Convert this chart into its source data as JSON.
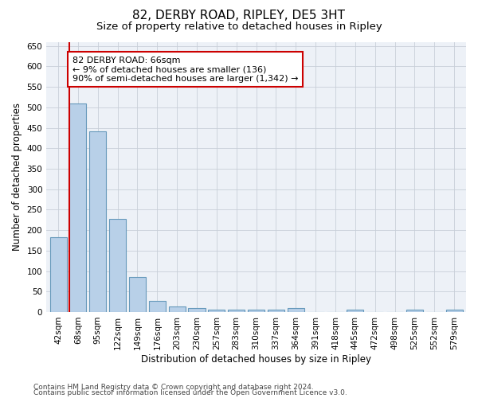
{
  "title": "82, DERBY ROAD, RIPLEY, DE5 3HT",
  "subtitle": "Size of property relative to detached houses in Ripley",
  "xlabel": "Distribution of detached houses by size in Ripley",
  "ylabel": "Number of detached properties",
  "categories": [
    "42sqm",
    "68sqm",
    "95sqm",
    "122sqm",
    "149sqm",
    "176sqm",
    "203sqm",
    "230sqm",
    "257sqm",
    "283sqm",
    "310sqm",
    "337sqm",
    "364sqm",
    "391sqm",
    "418sqm",
    "445sqm",
    "472sqm",
    "498sqm",
    "525sqm",
    "552sqm",
    "579sqm"
  ],
  "values": [
    182,
    510,
    442,
    228,
    85,
    28,
    14,
    9,
    6,
    6,
    6,
    6,
    9,
    0,
    0,
    5,
    0,
    0,
    5,
    0,
    5
  ],
  "bar_color": "#b8d0e8",
  "bar_edge_color": "#6699bb",
  "highlight_color": "#cc0000",
  "annotation_text": "82 DERBY ROAD: 66sqm\n← 9% of detached houses are smaller (136)\n90% of semi-detached houses are larger (1,342) →",
  "annotation_box_color": "#ffffff",
  "annotation_box_edge": "#cc0000",
  "ylim": [
    0,
    660
  ],
  "yticks": [
    0,
    50,
    100,
    150,
    200,
    250,
    300,
    350,
    400,
    450,
    500,
    550,
    600,
    650
  ],
  "footer_line1": "Contains HM Land Registry data © Crown copyright and database right 2024.",
  "footer_line2": "Contains public sector information licensed under the Open Government Licence v3.0.",
  "bg_color": "#edf1f7",
  "grid_color": "#c8cfd8",
  "title_fontsize": 11,
  "subtitle_fontsize": 9.5,
  "axis_label_fontsize": 8.5,
  "tick_fontsize": 7.5,
  "footer_fontsize": 6.5,
  "annotation_fontsize": 8
}
